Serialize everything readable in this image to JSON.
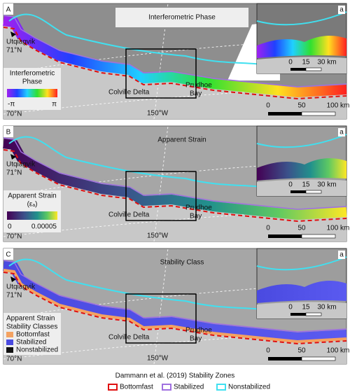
{
  "map_labels": {
    "utqiagvik": "Utqiagvik",
    "lat71": "71°N",
    "lat70": "70°N",
    "lon150": "150°W",
    "colville": "Colville Delta",
    "prudhoe": [
      "Prudhoe",
      "Bay"
    ]
  },
  "scale_main": [
    "0",
    "50",
    "100 km"
  ],
  "scale_inset": [
    "0",
    "15",
    "30 km"
  ],
  "panels": [
    {
      "letter": "A",
      "title": "Interferometric Phase",
      "inset_letter": "a",
      "legend": {
        "title": [
          "Interferometric",
          "Phase"
        ],
        "labels": [
          "-π",
          "π"
        ]
      }
    },
    {
      "letter": "B",
      "title": "Apparent Strain",
      "inset_letter": "a",
      "legend": {
        "title": [
          "Apparent Strain",
          "(εₐ)"
        ],
        "labels": [
          "0",
          "0.00005"
        ]
      }
    },
    {
      "letter": "C",
      "title": "Stability Class",
      "inset_letter": "a",
      "legend": {
        "title": [
          "Apparent Strain",
          "Stability Classes"
        ],
        "items": [
          "Bottomfast",
          "Stabilized",
          "Nonstabilized"
        ]
      }
    }
  ],
  "zones": {
    "title": "Dammann et al. (2019) Stability Zones",
    "items": [
      "Bottomfast",
      "Stabilized",
      "Nonstabilized"
    ]
  }
}
